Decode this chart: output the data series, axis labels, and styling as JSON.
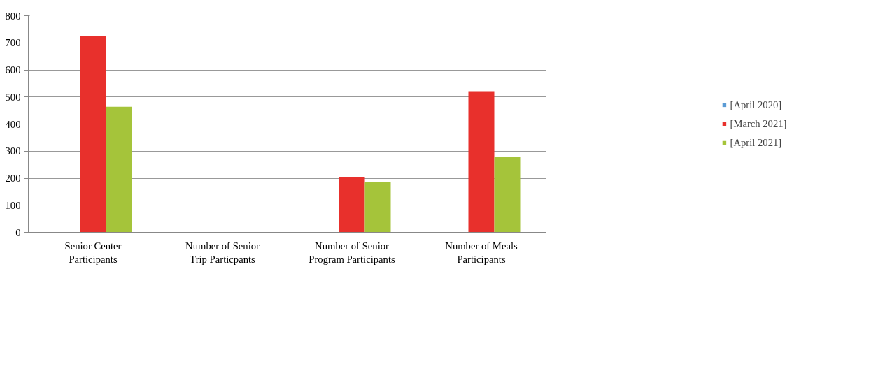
{
  "chart_data": {
    "type": "bar",
    "categories": [
      "Senior Center Participants",
      "Number of Senior Trip Particpants",
      "Number of Senior Program Participants",
      "Number of Meals Participants"
    ],
    "series": [
      {
        "name": "[April 2020]",
        "color": "#5b9bd5",
        "values": [
          0,
          0,
          0,
          0
        ]
      },
      {
        "name": "[March 2021]",
        "color": "#e8302c",
        "values": [
          726,
          0,
          203,
          521
        ]
      },
      {
        "name": "[April 2021]",
        "color": "#a5c43a",
        "values": [
          464,
          0,
          185,
          279
        ]
      }
    ],
    "ylim": [
      0,
      800
    ],
    "yticks": [
      0,
      100,
      200,
      300,
      400,
      500,
      600,
      700,
      800
    ],
    "grid": "y",
    "legend": "right"
  }
}
